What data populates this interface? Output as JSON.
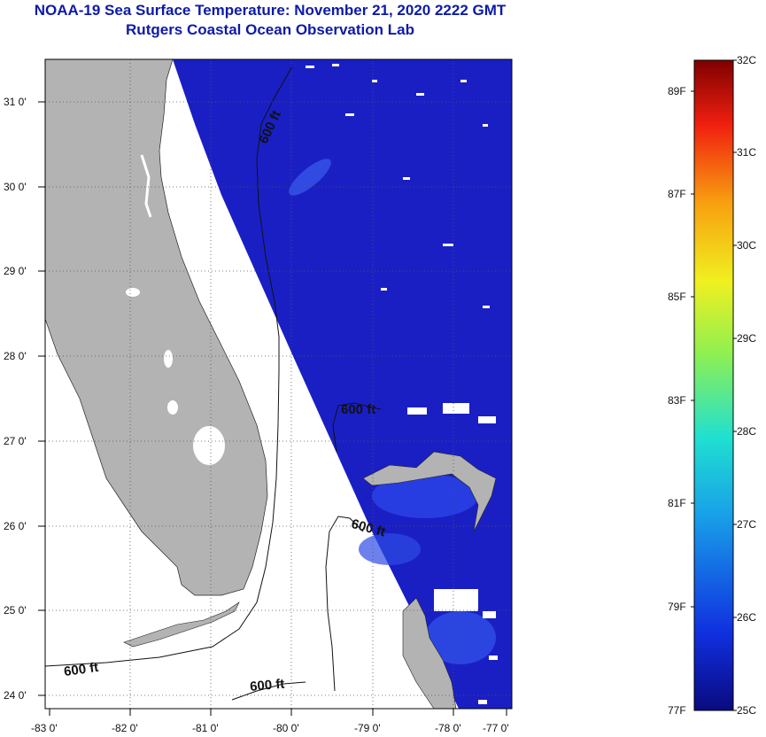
{
  "header": {
    "title_line1": "NOAA-19 Sea Surface Temperature:  November 21, 2020 2222 GMT",
    "title_line2": "Rutgers Coastal Ocean Observation Lab"
  },
  "map": {
    "lon_labels": [
      "-83 0'",
      "-82 0'",
      "-81 0'",
      "-80 0'",
      "-79 0'",
      "-78 0'",
      "-77 0'"
    ],
    "lat_labels": [
      "31 0'",
      "30 0'",
      "29 0'",
      "28 0'",
      "27 0'",
      "26 0'",
      "25 0'",
      "24 0'"
    ],
    "contour_labels": [
      "600 ft",
      "600 ft",
      "600 ft",
      "600 ft",
      "600 ft"
    ],
    "colors": {
      "land": "#b3b3b3",
      "ocean_sst": "#1a1fc4",
      "no_data": "#ffffff",
      "grid": "#555555"
    }
  },
  "colorbar": {
    "celsius_labels": [
      "32C",
      "31C",
      "30C",
      "29C",
      "28C",
      "27C",
      "26C",
      "25C"
    ],
    "fahrenheit_labels": [
      "89F",
      "87F",
      "85F",
      "83F",
      "81F",
      "79F",
      "77F"
    ],
    "range_c": [
      25,
      32
    ],
    "colors": [
      "#0a0a80",
      "#1030e0",
      "#18a0e8",
      "#20e0d0",
      "#90f050",
      "#f0f020",
      "#f8a010",
      "#f02010",
      "#800000"
    ]
  }
}
